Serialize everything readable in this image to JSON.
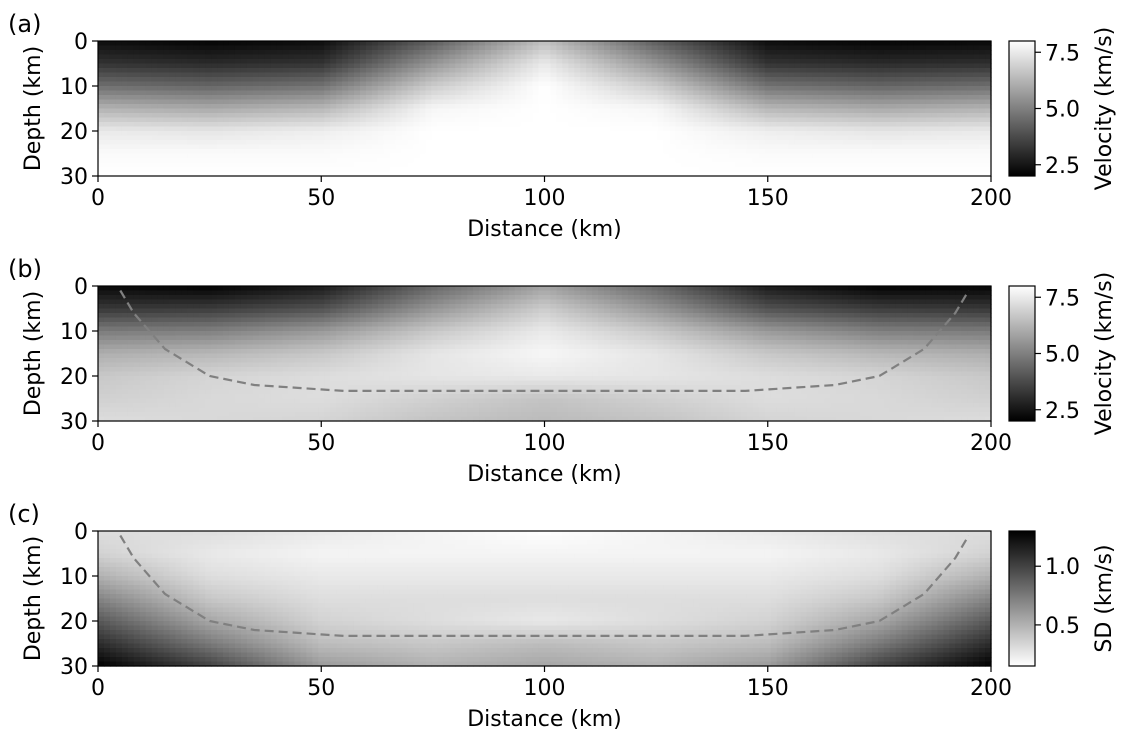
{
  "chart_data": [
    {
      "type": "heatmap",
      "panel_label": "(a)",
      "xlabel": "Distance (km)",
      "ylabel": "Depth (km)",
      "xlim": [
        0,
        200
      ],
      "ylim": [
        30,
        0
      ],
      "xticks": [
        "0",
        "50",
        "100",
        "150",
        "200"
      ],
      "yticks": [
        "0",
        "10",
        "20",
        "30"
      ],
      "colormap": "gray",
      "colorbar": {
        "label": "Velocity (km/s)",
        "range": [
          2.0,
          8.0
        ],
        "ticks": [
          "2.5",
          "5.0",
          "7.5"
        ],
        "low_color": "#000000",
        "high_color": "#ffffff"
      },
      "field": {
        "x": [
          0,
          25,
          50,
          75,
          100,
          125,
          150,
          175,
          200
        ],
        "depth": [
          0,
          5,
          10,
          15,
          20,
          25,
          30
        ],
        "values": [
          [
            2.3,
            2.1,
            2.3,
            4.2,
            6.5,
            4.2,
            2.3,
            2.1,
            2.2
          ],
          [
            3.2,
            3.0,
            3.2,
            5.5,
            7.5,
            5.5,
            3.2,
            3.0,
            3.1
          ],
          [
            4.6,
            4.4,
            4.7,
            6.8,
            8.0,
            6.8,
            4.7,
            4.4,
            4.6
          ],
          [
            6.2,
            6.0,
            6.3,
            7.8,
            8.0,
            7.8,
            6.3,
            6.0,
            6.2
          ],
          [
            7.5,
            7.4,
            7.6,
            8.0,
            8.0,
            8.0,
            7.6,
            7.4,
            7.5
          ],
          [
            7.9,
            7.9,
            7.9,
            8.0,
            8.0,
            8.0,
            7.9,
            7.9,
            7.9
          ],
          [
            8.0,
            8.0,
            8.0,
            8.0,
            8.0,
            8.0,
            8.0,
            8.0,
            8.0
          ]
        ]
      }
    },
    {
      "type": "heatmap",
      "panel_label": "(b)",
      "xlabel": "Distance (km)",
      "ylabel": "Depth (km)",
      "xlim": [
        0,
        200
      ],
      "ylim": [
        30,
        0
      ],
      "xticks": [
        "0",
        "50",
        "100",
        "150",
        "200"
      ],
      "yticks": [
        "0",
        "10",
        "20",
        "30"
      ],
      "colormap": "gray",
      "colorbar": {
        "label": "Velocity (km/s)",
        "range": [
          2.0,
          8.0
        ],
        "ticks": [
          "2.5",
          "5.0",
          "7.5"
        ],
        "low_color": "#000000",
        "high_color": "#ffffff"
      },
      "field": {
        "x": [
          0,
          25,
          50,
          75,
          100,
          125,
          150,
          175,
          200
        ],
        "depth": [
          0,
          5,
          10,
          15,
          20,
          25,
          30
        ],
        "values": [
          [
            2.2,
            2.0,
            2.6,
            4.4,
            5.8,
            4.4,
            2.6,
            2.0,
            2.1
          ],
          [
            3.3,
            3.4,
            3.9,
            5.5,
            6.8,
            5.5,
            3.9,
            3.4,
            3.3
          ],
          [
            4.9,
            5.0,
            5.6,
            6.7,
            7.5,
            6.7,
            5.6,
            5.0,
            4.9
          ],
          [
            6.1,
            6.3,
            6.7,
            7.4,
            7.8,
            7.4,
            6.7,
            6.3,
            6.1
          ],
          [
            6.7,
            7.0,
            7.2,
            7.4,
            7.5,
            7.4,
            7.2,
            7.0,
            6.7
          ],
          [
            6.9,
            7.1,
            7.2,
            6.9,
            6.6,
            6.9,
            7.2,
            7.1,
            6.9
          ],
          [
            7.2,
            7.1,
            7.0,
            6.6,
            6.4,
            6.6,
            7.0,
            7.1,
            7.2
          ]
        ]
      },
      "dashed_line": {
        "color": "#808080",
        "x": [
          5,
          8,
          15,
          25,
          35,
          55,
          100,
          145,
          165,
          175,
          185,
          192,
          195
        ],
        "depth": [
          1,
          6,
          14,
          20,
          22,
          23.3,
          23.3,
          23.3,
          22,
          20,
          14,
          6,
          1
        ]
      }
    },
    {
      "type": "heatmap",
      "panel_label": "(c)",
      "xlabel": "Distance (km)",
      "ylabel": "Depth (km)",
      "xlim": [
        0,
        200
      ],
      "ylim": [
        30,
        0
      ],
      "xticks": [
        "0",
        "50",
        "100",
        "150",
        "200"
      ],
      "yticks": [
        "0",
        "10",
        "20",
        "30"
      ],
      "colormap": "gray_r",
      "colorbar": {
        "label": "SD (km/s)",
        "range": [
          0.15,
          1.3
        ],
        "ticks": [
          "0.5",
          "1.0"
        ],
        "low_color": "#ffffff",
        "high_color": "#000000"
      },
      "field": {
        "x": [
          0,
          25,
          50,
          75,
          100,
          125,
          150,
          175,
          200
        ],
        "depth": [
          0,
          5,
          10,
          15,
          20,
          25,
          30
        ],
        "values": [
          [
            0.3,
            0.3,
            0.25,
            0.2,
            0.15,
            0.2,
            0.25,
            0.3,
            0.3
          ],
          [
            0.35,
            0.25,
            0.2,
            0.2,
            0.2,
            0.2,
            0.2,
            0.25,
            0.35
          ],
          [
            0.5,
            0.3,
            0.25,
            0.25,
            0.25,
            0.25,
            0.25,
            0.3,
            0.5
          ],
          [
            0.7,
            0.4,
            0.3,
            0.3,
            0.3,
            0.3,
            0.3,
            0.4,
            0.7
          ],
          [
            0.9,
            0.55,
            0.35,
            0.3,
            0.25,
            0.3,
            0.35,
            0.55,
            0.9
          ],
          [
            1.1,
            0.75,
            0.45,
            0.4,
            0.45,
            0.4,
            0.45,
            0.75,
            1.1
          ],
          [
            1.3,
            1.0,
            0.6,
            0.5,
            0.55,
            0.5,
            0.6,
            1.0,
            1.3
          ]
        ]
      },
      "dashed_line": {
        "color": "#808080",
        "x": [
          5,
          8,
          15,
          25,
          35,
          55,
          100,
          145,
          165,
          175,
          185,
          192,
          195
        ],
        "depth": [
          1,
          6,
          14,
          20,
          22,
          23.3,
          23.3,
          23.3,
          22,
          20,
          14,
          6,
          1
        ]
      }
    }
  ]
}
